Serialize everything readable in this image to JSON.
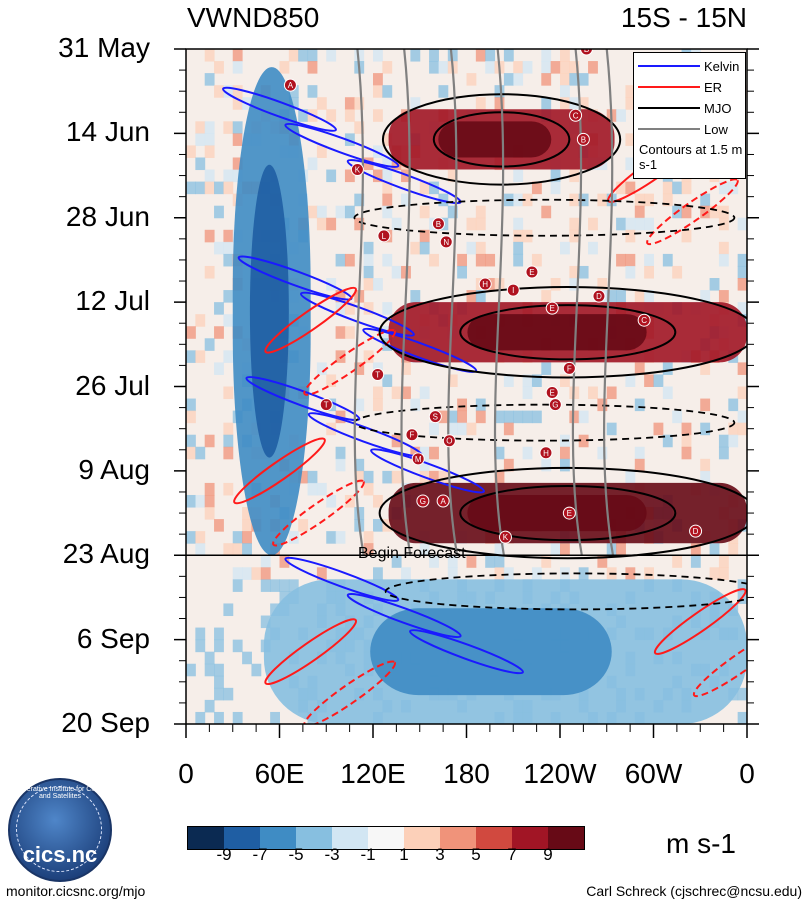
{
  "chart_data": {
    "type": "heatmap",
    "title": "VWND850",
    "subtitle": "15S - 15N",
    "xlabel": "",
    "ylabel": "",
    "x_ticks": [
      "0",
      "60E",
      "120E",
      "180",
      "120W",
      "60W",
      "0"
    ],
    "x_values_deg": [
      0,
      60,
      120,
      180,
      240,
      300,
      360
    ],
    "y_ticks": [
      "31 May",
      "14 Jun",
      "28 Jun",
      "12 Jul",
      "26 Jul",
      "9 Aug",
      "23 Aug",
      "6 Sep",
      "20 Sep"
    ],
    "y_days": [
      0,
      14,
      28,
      42,
      56,
      70,
      84,
      98,
      112
    ],
    "forecast_start": "23 Aug",
    "forecast_label": "Begin Forecast",
    "colorbar": {
      "units": "m s-1",
      "tick_labels": [
        "-9",
        "-7",
        "-5",
        "-3",
        "-1",
        "1",
        "3",
        "5",
        "7",
        "9"
      ],
      "colors": [
        "#0b2a52",
        "#1f5ea3",
        "#3f8cc4",
        "#87bfe0",
        "#d2e6f3",
        "#f7f7f7",
        "#fcd0b9",
        "#f0937a",
        "#d1493f",
        "#a11525",
        "#670a16"
      ]
    },
    "legend": {
      "entries": [
        {
          "name": "Kelvin",
          "color": "#1a1aff"
        },
        {
          "name": "ER",
          "color": "#ff1a1a"
        },
        {
          "name": "MJO",
          "color": "#000000"
        },
        {
          "name": "Low",
          "color": "#808080"
        }
      ],
      "note": "Contours at 1.5 m s-1",
      "position": "top-right"
    },
    "positive_anomaly_bands": [
      {
        "lon_start": 130,
        "lon_end": 275,
        "day_start": 10,
        "day_end": 20,
        "value": 7
      },
      {
        "lon_start": 130,
        "lon_end": 360,
        "day_start": 42,
        "day_end": 52,
        "value": 8
      },
      {
        "lon_start": 130,
        "lon_end": 360,
        "day_start": 72,
        "day_end": 82,
        "value": 9
      }
    ],
    "negative_anomaly_bands": [
      {
        "lon_start": 30,
        "lon_end": 80,
        "day_start": 3,
        "day_end": 84,
        "value": -7
      },
      {
        "lon_start": 50,
        "lon_end": 360,
        "day_start": 88,
        "day_end": 112,
        "value": -4
      }
    ],
    "storm_markers": [
      "B",
      "A",
      "C",
      "B",
      "K",
      "L",
      "B",
      "N",
      "E",
      "H",
      "I",
      "D",
      "E",
      "C",
      "F",
      "T",
      "E",
      "G",
      "T",
      "S",
      "F",
      "O",
      "M",
      "H",
      "G",
      "A",
      "E",
      "K",
      "D"
    ]
  },
  "footer": {
    "left": "monitor.cicsnc.org/mjo",
    "right": "Carl Schreck (cjschrec@ncsu.edu)"
  },
  "logo": {
    "text": "cics.nc",
    "ring_text": "Cooperative Institute for Climate and Satellites"
  }
}
